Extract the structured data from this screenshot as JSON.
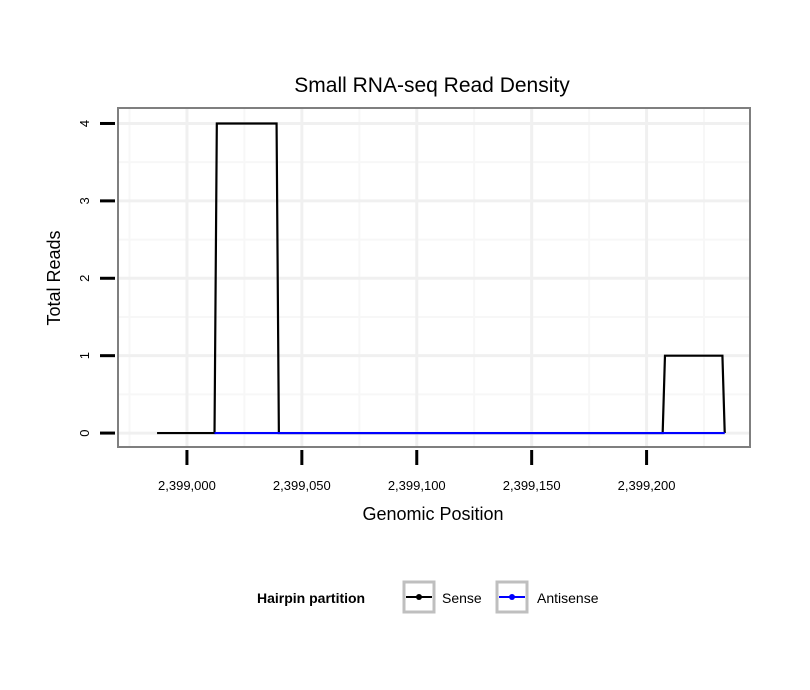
{
  "chart_data": {
    "type": "line",
    "title": "Small RNA-seq Read Density",
    "xlabel": "Genomic Position",
    "ylabel": "Total Reads",
    "xlim": [
      2398970,
      2399245
    ],
    "ylim": [
      -0.18,
      4.2
    ],
    "x_ticks": [
      2399000,
      2399050,
      2399100,
      2399150,
      2399200
    ],
    "x_tick_labels": [
      "2,399,000",
      "2,399,050",
      "2,399,100",
      "2,399,150",
      "2,399,200"
    ],
    "y_ticks": [
      0,
      1,
      2,
      3,
      4
    ],
    "y_tick_labels": [
      "0",
      "1",
      "2",
      "3",
      "4"
    ],
    "grid": true,
    "legend": {
      "title": "Hairpin partition",
      "position": "bottom",
      "entries": [
        "Sense",
        "Antisense"
      ]
    },
    "series": [
      {
        "name": "Sense",
        "color": "#000000",
        "points": [
          [
            2398987,
            0
          ],
          [
            2399012,
            0
          ],
          [
            2399013,
            4
          ],
          [
            2399039,
            4
          ],
          [
            2399040,
            0
          ],
          [
            2399207,
            0
          ],
          [
            2399208,
            1
          ],
          [
            2399233,
            1
          ],
          [
            2399234,
            0
          ]
        ]
      },
      {
        "name": "Antisense",
        "color": "#0000ff",
        "points": [
          [
            2399012,
            0
          ],
          [
            2399040,
            0
          ],
          [
            2399207,
            0
          ],
          [
            2399234,
            0
          ]
        ]
      }
    ]
  }
}
